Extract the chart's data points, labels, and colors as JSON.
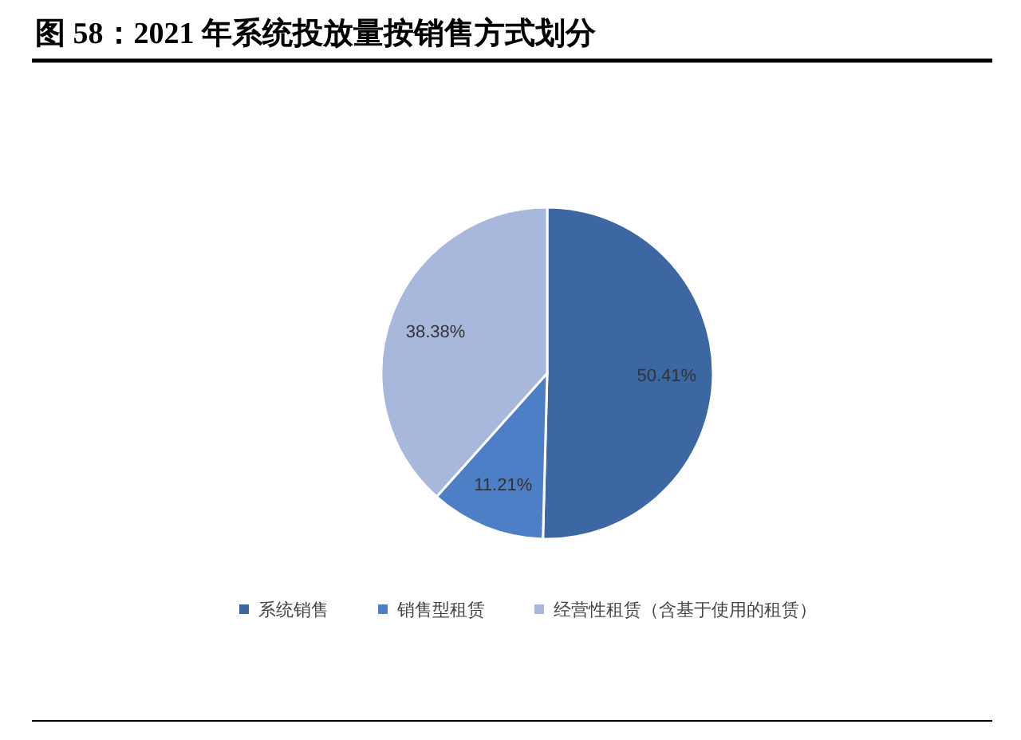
{
  "chart_data": {
    "type": "pie",
    "title": "图 58：2021 年系统投放量按销售方式划分",
    "categories": [
      "系统销售",
      "销售型租赁",
      "经营性租赁（含基于使用的租赁）"
    ],
    "values": [
      50.41,
      11.21,
      38.38
    ],
    "colors": [
      "#3d67a3",
      "#4d7fc6",
      "#a7b8dc"
    ],
    "value_labels": [
      "50.41%",
      "11.21%",
      "38.38%"
    ],
    "legend": "bottom"
  }
}
